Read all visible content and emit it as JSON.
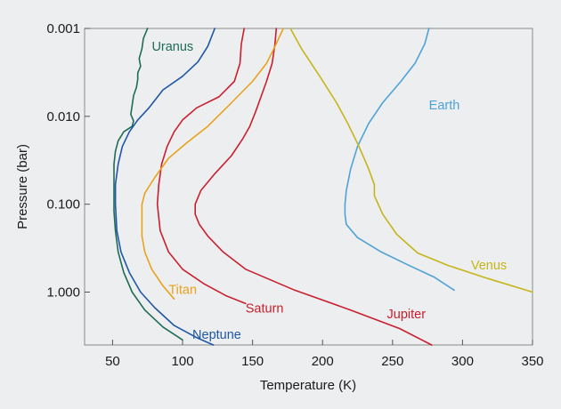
{
  "chart_data": {
    "type": "line",
    "xlabel": "Temperature (K)",
    "ylabel": "Pressure (bar)",
    "xlim": [
      30,
      350
    ],
    "ylim": [
      0.001,
      4.0
    ],
    "y_scale": "log",
    "y_inverted": true,
    "grid": false,
    "x_ticks": [
      {
        "value": 50,
        "label": "50"
      },
      {
        "value": 100,
        "label": "100"
      },
      {
        "value": 150,
        "label": "150"
      },
      {
        "value": 200,
        "label": "200"
      },
      {
        "value": 250,
        "label": "250"
      },
      {
        "value": 300,
        "label": "300"
      },
      {
        "value": 350,
        "label": "350"
      }
    ],
    "y_ticks": [
      {
        "value": 0.001,
        "label": "0.001"
      },
      {
        "value": 0.01,
        "label": "0.010"
      },
      {
        "value": 0.1,
        "label": "0.100"
      },
      {
        "value": 1.0,
        "label": "1.000"
      }
    ],
    "series": [
      {
        "name": "Uranus",
        "color": "#1e6b56",
        "label_at": {
          "x": 78,
          "y": 0.0018
        },
        "points": [
          [
            75,
            0.001
          ],
          [
            72,
            0.0013
          ],
          [
            71,
            0.0017
          ],
          [
            69,
            0.0022
          ],
          [
            70,
            0.0027
          ],
          [
            68,
            0.0032
          ],
          [
            68,
            0.0038
          ],
          [
            67,
            0.0047
          ],
          [
            65,
            0.0058
          ],
          [
            64,
            0.0075
          ],
          [
            63,
            0.0095
          ],
          [
            65,
            0.0113
          ],
          [
            64,
            0.013
          ],
          [
            58,
            0.015
          ],
          [
            54,
            0.019
          ],
          [
            52,
            0.025
          ],
          [
            51,
            0.035
          ],
          [
            51,
            0.05
          ],
          [
            51,
            0.08
          ],
          [
            51,
            0.12
          ],
          [
            52,
            0.2
          ],
          [
            54,
            0.35
          ],
          [
            58,
            0.6
          ],
          [
            64,
            1.0
          ],
          [
            73,
            1.6
          ],
          [
            86,
            2.5
          ],
          [
            100,
            3.5
          ]
        ]
      },
      {
        "name": "Neptune",
        "color": "#1f57a5",
        "label_at": {
          "x": 107,
          "y": 3.4
        },
        "points": [
          [
            123,
            0.001
          ],
          [
            118,
            0.0016
          ],
          [
            111,
            0.0024
          ],
          [
            100,
            0.0035
          ],
          [
            86,
            0.005
          ],
          [
            76,
            0.008
          ],
          [
            68,
            0.011
          ],
          [
            62,
            0.015
          ],
          [
            57,
            0.022
          ],
          [
            54,
            0.035
          ],
          [
            52,
            0.06
          ],
          [
            52,
            0.1
          ],
          [
            53,
            0.2
          ],
          [
            56,
            0.35
          ],
          [
            62,
            0.6
          ],
          [
            70,
            1.0
          ],
          [
            80,
            1.5
          ],
          [
            94,
            2.4
          ],
          [
            110,
            3.3
          ],
          [
            122,
            4.0
          ]
        ]
      },
      {
        "name": "Saturn",
        "color": "#c8202e",
        "label_at": {
          "x": 145,
          "y": 1.7
        },
        "points": [
          [
            144,
            0.001
          ],
          [
            142,
            0.0015
          ],
          [
            141,
            0.0025
          ],
          [
            137,
            0.004
          ],
          [
            126,
            0.006
          ],
          [
            110,
            0.008
          ],
          [
            100,
            0.011
          ],
          [
            94,
            0.015
          ],
          [
            89,
            0.022
          ],
          [
            85,
            0.035
          ],
          [
            83,
            0.06
          ],
          [
            82,
            0.1
          ],
          [
            84,
            0.2
          ],
          [
            90,
            0.35
          ],
          [
            100,
            0.55
          ],
          [
            115,
            0.8
          ],
          [
            131,
            1.1
          ],
          [
            145,
            1.35
          ]
        ]
      },
      {
        "name": "Jupiter",
        "color": "#c8202e",
        "label_at": {
          "x": 246,
          "y": 2.0
        },
        "points": [
          [
            167,
            0.001
          ],
          [
            166,
            0.0015
          ],
          [
            164,
            0.0025
          ],
          [
            160,
            0.004
          ],
          [
            156,
            0.006
          ],
          [
            152,
            0.009
          ],
          [
            148,
            0.013
          ],
          [
            143,
            0.018
          ],
          [
            135,
            0.028
          ],
          [
            123,
            0.045
          ],
          [
            113,
            0.07
          ],
          [
            109,
            0.1
          ],
          [
            109,
            0.13
          ],
          [
            112,
            0.17
          ],
          [
            118,
            0.23
          ],
          [
            129,
            0.35
          ],
          [
            145,
            0.55
          ],
          [
            180,
            0.95
          ],
          [
            220,
            1.6
          ],
          [
            255,
            2.6
          ],
          [
            278,
            4.0
          ]
        ]
      },
      {
        "name": "Titan",
        "color": "#e8a21d",
        "label_at": {
          "x": 90,
          "y": 1.05
        },
        "points": [
          [
            172,
            0.001
          ],
          [
            166,
            0.0016
          ],
          [
            160,
            0.0025
          ],
          [
            150,
            0.004
          ],
          [
            135,
            0.007
          ],
          [
            118,
            0.013
          ],
          [
            103,
            0.02
          ],
          [
            90,
            0.03
          ],
          [
            80,
            0.05
          ],
          [
            73,
            0.075
          ],
          [
            71,
            0.1
          ],
          [
            71,
            0.15
          ],
          [
            71,
            0.23
          ],
          [
            73,
            0.35
          ],
          [
            78,
            0.55
          ],
          [
            86,
            0.85
          ],
          [
            94,
            1.2
          ]
        ]
      },
      {
        "name": "Earth",
        "color": "#4fa2d6",
        "label_at": {
          "x": 276,
          "y": 0.0083
        },
        "points": [
          [
            276,
            0.001
          ],
          [
            273,
            0.0015
          ],
          [
            266,
            0.0025
          ],
          [
            256,
            0.004
          ],
          [
            243,
            0.007
          ],
          [
            233,
            0.012
          ],
          [
            225,
            0.022
          ],
          [
            220,
            0.04
          ],
          [
            217,
            0.07
          ],
          [
            216,
            0.1
          ],
          [
            216,
            0.13
          ],
          [
            217,
            0.17
          ],
          [
            225,
            0.24
          ],
          [
            242,
            0.35
          ],
          [
            262,
            0.5
          ],
          [
            280,
            0.68
          ],
          [
            294,
            0.95
          ]
        ]
      },
      {
        "name": "Venus",
        "color": "#c6b51a",
        "label_at": {
          "x": 306,
          "y": 0.55
        },
        "points": [
          [
            177,
            0.001
          ],
          [
            185,
            0.0017
          ],
          [
            198,
            0.0035
          ],
          [
            210,
            0.007
          ],
          [
            218,
            0.012
          ],
          [
            226,
            0.022
          ],
          [
            233,
            0.04
          ],
          [
            237,
            0.06
          ],
          [
            237,
            0.08
          ],
          [
            243,
            0.13
          ],
          [
            253,
            0.22
          ],
          [
            268,
            0.36
          ],
          [
            290,
            0.5
          ],
          [
            318,
            0.7
          ],
          [
            350,
            1.0
          ]
        ]
      }
    ]
  }
}
